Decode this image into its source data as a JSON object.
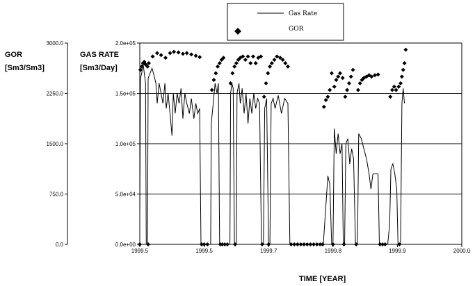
{
  "chart_data": {
    "type": "line",
    "x_axis": {
      "label": "TIME [YEAR]",
      "range": [
        1999.5,
        2000.0
      ],
      "tick_labels": [
        "1999.5",
        "1999.5",
        "1999.7",
        "1999.8",
        "1999.9",
        "2000.0"
      ]
    },
    "left_axis": {
      "label_line1": "GOR",
      "label_line2": "[Sm3/Sm3]",
      "range": [
        0,
        3000
      ],
      "tick_labels": [
        "3000.0",
        "2250.0",
        "1500.0",
        "750.0",
        "0.0"
      ]
    },
    "right_axis": {
      "label_line1": "GAS RATE",
      "label_line2": "[Sm3/Day]",
      "range": [
        0,
        200000
      ],
      "tick_labels": [
        "2.0e+05",
        "1.5e+05",
        "1.0e+05",
        "5.0e+04",
        "0.0e+00"
      ],
      "gridlines": [
        50000,
        100000,
        150000
      ]
    },
    "legend": {
      "position": "top-center",
      "entries": [
        "Gas Rate",
        "GOR"
      ]
    },
    "series": [
      {
        "name": "Gas Rate",
        "axis": "right",
        "points": [
          [
            1999.5,
            30000
          ],
          [
            1999.501,
            165000
          ],
          [
            1999.503,
            170000
          ],
          [
            1999.505,
            180000
          ],
          [
            1999.507,
            170000
          ],
          [
            1999.509,
            160000
          ],
          [
            1999.51,
            0
          ],
          [
            1999.512,
            0
          ],
          [
            1999.513,
            165000
          ],
          [
            1999.516,
            170000
          ],
          [
            1999.519,
            175000
          ],
          [
            1999.522,
            168000
          ],
          [
            1999.525,
            160000
          ],
          [
            1999.527,
            140000
          ],
          [
            1999.53,
            160000
          ],
          [
            1999.533,
            150000
          ],
          [
            1999.536,
            140000
          ],
          [
            1999.539,
            160000
          ],
          [
            1999.541,
            135000
          ],
          [
            1999.544,
            150000
          ],
          [
            1999.547,
            130000
          ],
          [
            1999.55,
            108000
          ],
          [
            1999.552,
            150000
          ],
          [
            1999.555,
            130000
          ],
          [
            1999.558,
            150000
          ],
          [
            1999.561,
            140000
          ],
          [
            1999.564,
            155000
          ],
          [
            1999.567,
            125000
          ],
          [
            1999.57,
            150000
          ],
          [
            1999.573,
            140000
          ],
          [
            1999.577,
            130000
          ],
          [
            1999.58,
            145000
          ],
          [
            1999.584,
            125000
          ],
          [
            1999.587,
            140000
          ],
          [
            1999.59,
            130000
          ],
          [
            1999.593,
            135000
          ],
          [
            1999.595,
            0
          ],
          [
            1999.61,
            0
          ],
          [
            1999.611,
            120000
          ],
          [
            1999.614,
            140000
          ],
          [
            1999.617,
            160000
          ],
          [
            1999.62,
            150000
          ],
          [
            1999.622,
            160000
          ],
          [
            1999.624,
            0
          ],
          [
            1999.64,
            0
          ],
          [
            1999.641,
            150000
          ],
          [
            1999.643,
            160000
          ],
          [
            1999.645,
            155000
          ],
          [
            1999.647,
            0
          ],
          [
            1999.65,
            0
          ],
          [
            1999.651,
            150000
          ],
          [
            1999.654,
            160000
          ],
          [
            1999.656,
            140000
          ],
          [
            1999.659,
            155000
          ],
          [
            1999.662,
            130000
          ],
          [
            1999.665,
            150000
          ],
          [
            1999.668,
            120000
          ],
          [
            1999.671,
            145000
          ],
          [
            1999.674,
            130000
          ],
          [
            1999.677,
            150000
          ],
          [
            1999.68,
            135000
          ],
          [
            1999.683,
            145000
          ],
          [
            1999.686,
            140000
          ],
          [
            1999.689,
            0
          ],
          [
            1999.692,
            0
          ],
          [
            1999.694,
            135000
          ],
          [
            1999.697,
            145000
          ],
          [
            1999.7,
            0
          ],
          [
            1999.702,
            0
          ],
          [
            1999.704,
            140000
          ],
          [
            1999.707,
            145000
          ],
          [
            1999.71,
            135000
          ],
          [
            1999.715,
            148000
          ],
          [
            1999.72,
            130000
          ],
          [
            1999.725,
            145000
          ],
          [
            1999.73,
            140000
          ],
          [
            1999.733,
            0
          ],
          [
            1999.785,
            0
          ],
          [
            1999.792,
            68000
          ],
          [
            1999.795,
            60000
          ],
          [
            1999.798,
            0
          ],
          [
            1999.8,
            0
          ],
          [
            1999.802,
            115000
          ],
          [
            1999.805,
            90000
          ],
          [
            1999.808,
            110000
          ],
          [
            1999.811,
            90000
          ],
          [
            1999.814,
            100000
          ],
          [
            1999.816,
            0
          ],
          [
            1999.818,
            0
          ],
          [
            1999.82,
            100000
          ],
          [
            1999.823,
            105000
          ],
          [
            1999.826,
            80000
          ],
          [
            1999.829,
            95000
          ],
          [
            1999.832,
            85000
          ],
          [
            1999.835,
            0
          ],
          [
            1999.838,
            0
          ],
          [
            1999.84,
            110000
          ],
          [
            1999.844,
            105000
          ],
          [
            1999.848,
            95000
          ],
          [
            1999.852,
            85000
          ],
          [
            1999.856,
            70000
          ],
          [
            1999.859,
            55000
          ],
          [
            1999.862,
            70000
          ],
          [
            1999.866,
            70000
          ],
          [
            1999.87,
            70000
          ],
          [
            1999.872,
            0
          ],
          [
            1999.885,
            0
          ],
          [
            1999.888,
            20000
          ],
          [
            1999.89,
            75000
          ],
          [
            1999.893,
            80000
          ],
          [
            1999.896,
            70000
          ],
          [
            1999.899,
            55000
          ],
          [
            1999.901,
            0
          ],
          [
            1999.905,
            0
          ],
          [
            1999.907,
            140000
          ],
          [
            1999.909,
            155000
          ],
          [
            1999.911,
            140000
          ]
        ]
      },
      {
        "name": "GOR",
        "axis": "left",
        "points": [
          [
            1999.501,
            2600
          ],
          [
            1999.503,
            2650
          ],
          [
            1999.505,
            2700
          ],
          [
            1999.507,
            2720
          ],
          [
            1999.509,
            2680
          ],
          [
            1999.512,
            2650
          ],
          [
            1999.514,
            2700
          ],
          [
            1999.52,
            2800
          ],
          [
            1999.527,
            2850
          ],
          [
            1999.533,
            2820
          ],
          [
            1999.54,
            2780
          ],
          [
            1999.547,
            2850
          ],
          [
            1999.553,
            2870
          ],
          [
            1999.56,
            2860
          ],
          [
            1999.567,
            2840
          ],
          [
            1999.573,
            2850
          ],
          [
            1999.58,
            2830
          ],
          [
            1999.587,
            2810
          ],
          [
            1999.593,
            2790
          ],
          [
            1999.612,
            2300
          ],
          [
            1999.615,
            2450
          ],
          [
            1999.618,
            2550
          ],
          [
            1999.621,
            2650
          ],
          [
            1999.624,
            2700
          ],
          [
            1999.627,
            2750
          ],
          [
            1999.63,
            2780
          ],
          [
            1999.641,
            2400
          ],
          [
            1999.644,
            2550
          ],
          [
            1999.647,
            2650
          ],
          [
            1999.65,
            2700
          ],
          [
            1999.653,
            2750
          ],
          [
            1999.656,
            2780
          ],
          [
            1999.66,
            2800
          ],
          [
            1999.664,
            2750
          ],
          [
            1999.668,
            2800
          ],
          [
            1999.672,
            2700
          ],
          [
            1999.676,
            2800
          ],
          [
            1999.68,
            2700
          ],
          [
            1999.684,
            2780
          ],
          [
            1999.688,
            2800
          ],
          [
            1999.693,
            2200
          ],
          [
            1999.696,
            2400
          ],
          [
            1999.699,
            2550
          ],
          [
            1999.702,
            2650
          ],
          [
            1999.705,
            2700
          ],
          [
            1999.709,
            2750
          ],
          [
            1999.713,
            2800
          ],
          [
            1999.718,
            2780
          ],
          [
            1999.722,
            2750
          ],
          [
            1999.726,
            2700
          ],
          [
            1999.73,
            2650
          ],
          [
            1999.786,
            2050
          ],
          [
            1999.789,
            2150
          ],
          [
            1999.792,
            2200
          ],
          [
            1999.795,
            2300
          ],
          [
            1999.798,
            2550
          ],
          [
            1999.802,
            2350
          ],
          [
            1999.805,
            2450
          ],
          [
            1999.808,
            2500
          ],
          [
            1999.811,
            2550
          ],
          [
            1999.815,
            2480
          ],
          [
            1999.819,
            2200
          ],
          [
            1999.822,
            2300
          ],
          [
            1999.825,
            2400
          ],
          [
            1999.828,
            2500
          ],
          [
            1999.831,
            2600
          ],
          [
            1999.839,
            2300
          ],
          [
            1999.842,
            2400
          ],
          [
            1999.845,
            2450
          ],
          [
            1999.848,
            2480
          ],
          [
            1999.852,
            2500
          ],
          [
            1999.856,
            2520
          ],
          [
            1999.86,
            2500
          ],
          [
            1999.865,
            2520
          ],
          [
            1999.87,
            2530
          ],
          [
            1999.889,
            2200
          ],
          [
            1999.892,
            2300
          ],
          [
            1999.895,
            2350
          ],
          [
            1999.898,
            2300
          ],
          [
            1999.902,
            2350
          ],
          [
            1999.905,
            2400
          ],
          [
            1999.907,
            2500
          ],
          [
            1999.909,
            2600
          ],
          [
            1999.911,
            2700
          ],
          [
            1999.913,
            2900
          ],
          [
            1999.5,
            0
          ],
          [
            1999.513,
            0
          ],
          [
            1999.596,
            0
          ],
          [
            1999.6,
            0
          ],
          [
            1999.605,
            0
          ],
          [
            1999.625,
            0
          ],
          [
            1999.628,
            0
          ],
          [
            1999.632,
            0
          ],
          [
            1999.636,
            0
          ],
          [
            1999.648,
            0
          ],
          [
            1999.69,
            0
          ],
          [
            1999.7,
            0
          ],
          [
            1999.735,
            0
          ],
          [
            1999.74,
            0
          ],
          [
            1999.745,
            0
          ],
          [
            1999.75,
            0
          ],
          [
            1999.755,
            0
          ],
          [
            1999.76,
            0
          ],
          [
            1999.765,
            0
          ],
          [
            1999.77,
            0
          ],
          [
            1999.775,
            0
          ],
          [
            1999.78,
            0
          ],
          [
            1999.784,
            0
          ],
          [
            1999.8,
            0
          ],
          [
            1999.817,
            0
          ],
          [
            1999.836,
            0
          ],
          [
            1999.873,
            0
          ],
          [
            1999.877,
            0
          ],
          [
            1999.881,
            0
          ],
          [
            1999.903,
            0
          ]
        ]
      }
    ]
  }
}
